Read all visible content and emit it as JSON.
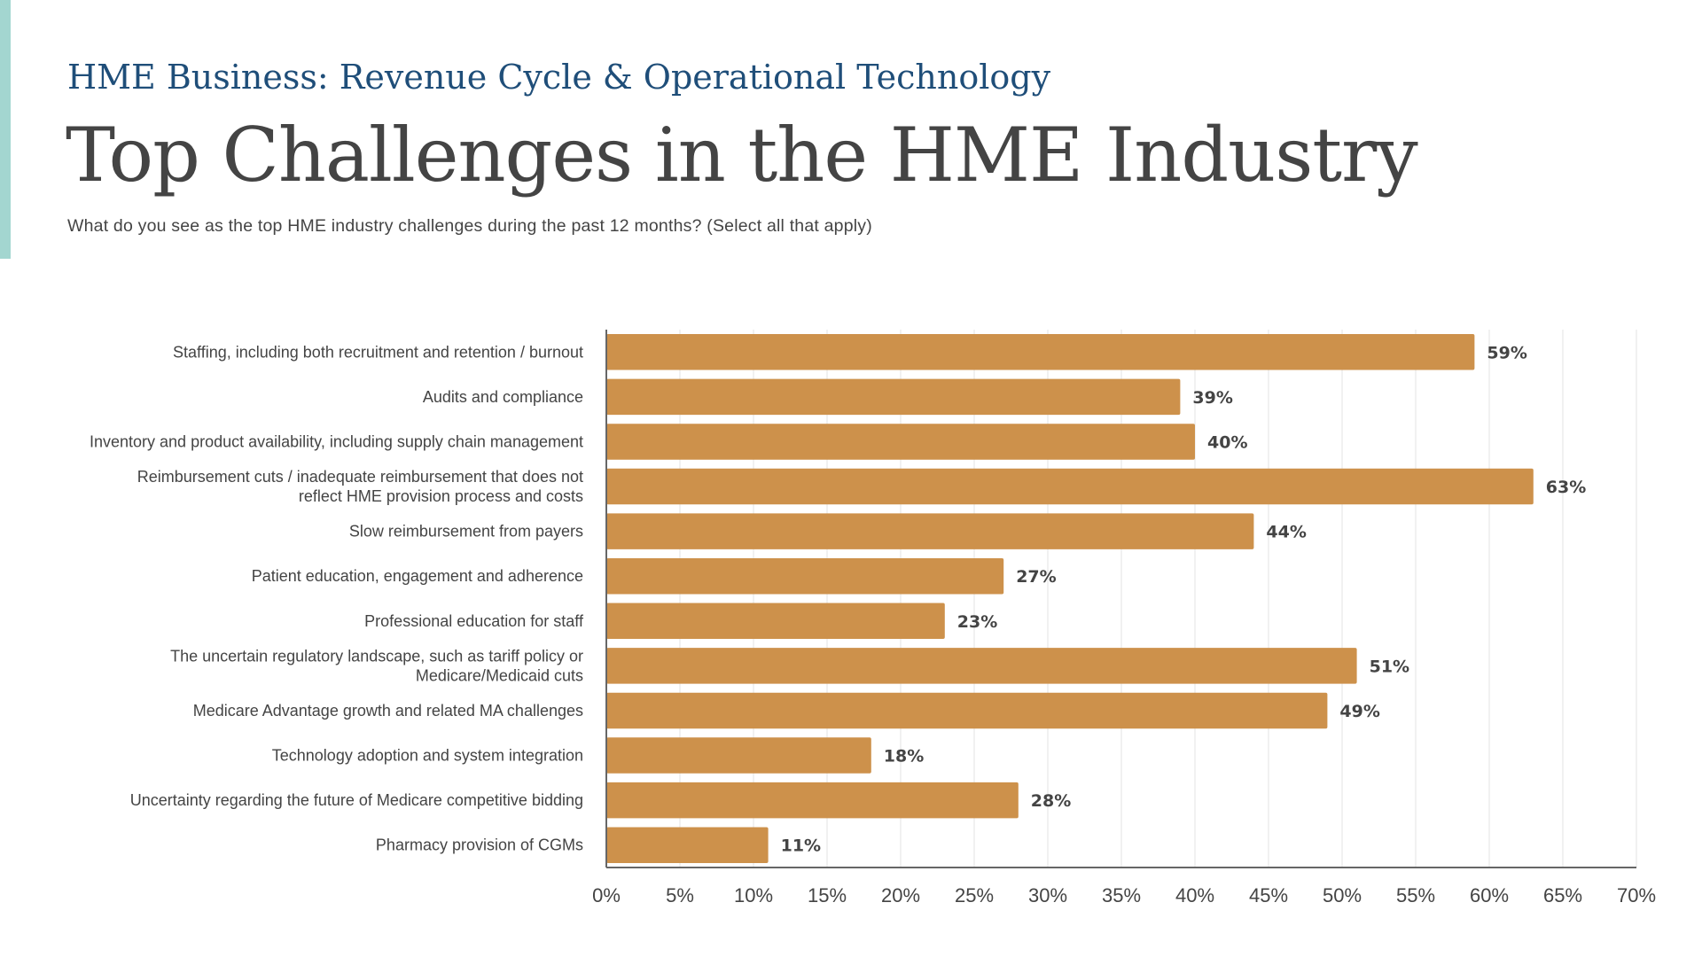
{
  "header": {
    "kicker": "HME Business: Revenue Cycle & Operational Technology",
    "title": "Top Challenges in the HME Industry",
    "question": "What do you see as the top HME industry challenges during the past 12 months? (Select all that apply)"
  },
  "colors": {
    "accent_bar": "#a3d6d0",
    "kicker": "#1f4e79",
    "title": "#444444",
    "text": "#444444",
    "bar": "#cd914b",
    "grid": "#e3e3e3",
    "axis": "#666666"
  },
  "chart_data": {
    "type": "bar",
    "orientation": "horizontal",
    "categories": [
      [
        "Staffing, including both recruitment and retention / burnout"
      ],
      [
        "Audits and compliance"
      ],
      [
        "Inventory and product availability, including supply chain management"
      ],
      [
        "Reimbursement cuts / inadequate reimbursement that does not",
        "reflect HME provision process and costs"
      ],
      [
        "Slow reimbursement from payers"
      ],
      [
        "Patient education, engagement and adherence"
      ],
      [
        "Professional education for staff"
      ],
      [
        "The uncertain regulatory landscape, such as tariff policy or",
        "Medicare/Medicaid cuts"
      ],
      [
        "Medicare Advantage growth and related MA challenges"
      ],
      [
        "Technology adoption and system integration"
      ],
      [
        "Uncertainty regarding the future of Medicare competitive bidding"
      ],
      [
        "Pharmacy provision of CGMs"
      ]
    ],
    "values": [
      59,
      39,
      40,
      63,
      44,
      27,
      23,
      51,
      49,
      18,
      28,
      11
    ],
    "value_labels": [
      "59%",
      "39%",
      "40%",
      "63%",
      "44%",
      "27%",
      "23%",
      "51%",
      "49%",
      "18%",
      "28%",
      "11%"
    ],
    "xlim": [
      0,
      70
    ],
    "xticks": [
      0,
      5,
      10,
      15,
      20,
      25,
      30,
      35,
      40,
      45,
      50,
      55,
      60,
      65,
      70
    ],
    "xtick_labels": [
      "0%",
      "5%",
      "10%",
      "15%",
      "20%",
      "25%",
      "30%",
      "35%",
      "40%",
      "45%",
      "50%",
      "55%",
      "60%",
      "65%",
      "70%"
    ],
    "grid": true,
    "legend": "none"
  }
}
